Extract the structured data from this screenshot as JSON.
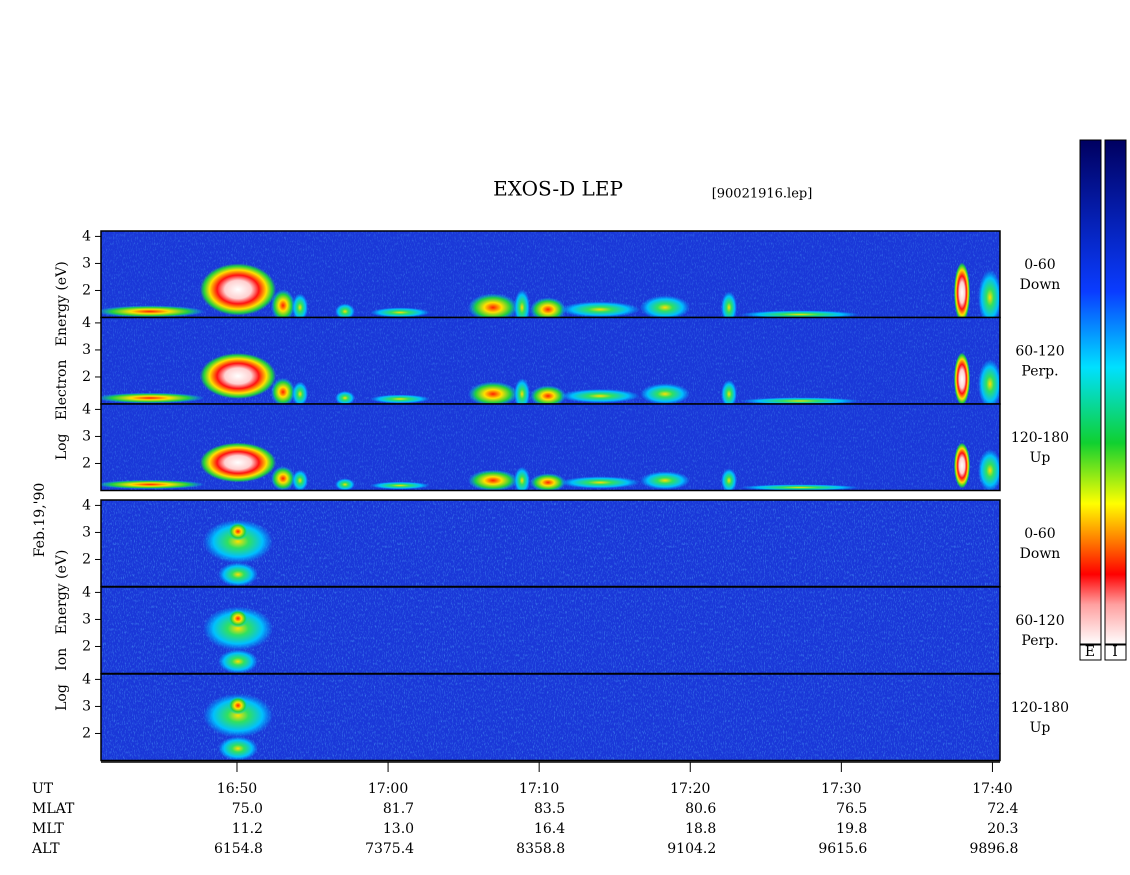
{
  "chart_data": {
    "type": "spectrogram",
    "title": "EXOS-D LEP",
    "file_label": "[90021916.lep]",
    "date_label": "Feb.19,'90",
    "groups": [
      {
        "ylabel": "Log   Electron   Energy (eV)",
        "colorbar_label": "E"
      },
      {
        "ylabel": "Log   Ion   Energy (eV)",
        "colorbar_label": "I"
      }
    ],
    "panels": [
      {
        "labels": [
          "0-60",
          "Down"
        ]
      },
      {
        "labels": [
          "60-120",
          "Perp."
        ]
      },
      {
        "labels": [
          "120-180",
          "Up"
        ]
      }
    ],
    "ylim": [
      1,
      4.2
    ],
    "yticks": [
      2,
      3,
      4
    ],
    "xlim": [
      1001,
      1060.5
    ],
    "xticks": [
      {
        "value": 1010,
        "label": "16:50"
      },
      {
        "value": 1020,
        "label": "17:00"
      },
      {
        "value": 1030,
        "label": "17:10"
      },
      {
        "value": 1040,
        "label": "17:20"
      },
      {
        "value": 1050,
        "label": "17:30"
      },
      {
        "value": 1060,
        "label": "17:40"
      }
    ],
    "x_label": "UT",
    "orbit_rows": [
      {
        "name": "MLAT",
        "values": [
          "75.0",
          "81.7",
          "83.5",
          "80.6",
          "76.5",
          "72.4"
        ]
      },
      {
        "name": "MLT",
        "values": [
          "11.2",
          "13.0",
          "16.4",
          "18.8",
          "19.8",
          "20.3"
        ]
      },
      {
        "name": "ALT",
        "values": [
          "6154.8",
          "7375.4",
          "8358.8",
          "9104.2",
          "9615.6",
          "9896.8"
        ]
      }
    ]
  }
}
